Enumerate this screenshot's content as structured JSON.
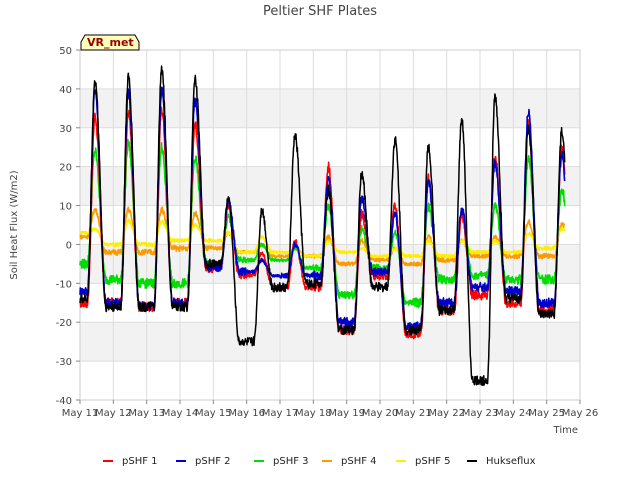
{
  "chart_data": {
    "type": "line",
    "title": "Peltier SHF Plates",
    "xlabel": "Time",
    "ylabel": "Soil Heat Flux (W/m2)",
    "ylim": [
      -40,
      50
    ],
    "yticks": [
      -40,
      -30,
      -20,
      -10,
      0,
      10,
      20,
      30,
      40,
      50
    ],
    "xlim": [
      0,
      15
    ],
    "xtick_labels": [
      "May 11",
      "May 12",
      "May 13",
      "May 14",
      "May 15",
      "May 16",
      "May 17",
      "May 18",
      "May 19",
      "May 20",
      "May 21",
      "May 22",
      "May 23",
      "May 24",
      "May 25",
      "May 26"
    ],
    "x_units": "days since May 11",
    "grid": true,
    "background_bands": true,
    "legend_position": "bottom",
    "annotation": "VR_met",
    "series": [
      {
        "name": "pSHF 1",
        "color": "#ff0000",
        "peaks": [
          33,
          34,
          35,
          31,
          10,
          -2,
          1,
          20,
          8,
          10,
          17,
          8,
          23,
          32,
          25
        ],
        "troughs": [
          -15,
          -15,
          -16,
          -15,
          -6,
          -8,
          -11,
          -11,
          -22,
          -8,
          -23,
          -17,
          -13,
          -15,
          -17,
          -16
        ]
      },
      {
        "name": "pSHF 2",
        "color": "#0000cc",
        "peaks": [
          40,
          39,
          40,
          37,
          11,
          -4,
          0,
          17,
          12,
          8,
          16,
          9,
          21,
          34,
          23
        ],
        "troughs": [
          -12,
          -15,
          -16,
          -15,
          -6,
          -7,
          -8,
          -8,
          -20,
          -7,
          -21,
          -15,
          -11,
          -12,
          -15,
          -13
        ]
      },
      {
        "name": "pSHF 3",
        "color": "#00dd00",
        "peaks": [
          24,
          26,
          25,
          22,
          7,
          0,
          -1,
          10,
          4,
          3,
          10,
          8,
          10,
          22,
          14
        ],
        "troughs": [
          -5,
          -9,
          -10,
          -10,
          -5,
          -4,
          -4,
          -6,
          -13,
          -6,
          -15,
          -9,
          -8,
          -9,
          -9,
          -5
        ]
      },
      {
        "name": "pSHF 4",
        "color": "#ff9900",
        "peaks": [
          9,
          9,
          9,
          8,
          3,
          0,
          -1,
          2,
          1,
          -1,
          2,
          1,
          2,
          6,
          5
        ],
        "troughs": [
          2,
          -2,
          -2,
          -1,
          -1,
          -2,
          -3,
          -3,
          -5,
          -4,
          -5,
          -4,
          -3,
          -3,
          -3,
          2
        ]
      },
      {
        "name": "pSHF 5",
        "color": "#ffee00",
        "peaks": [
          4,
          6,
          6,
          5,
          3,
          2,
          -1,
          1,
          -1,
          -1,
          1,
          1,
          1,
          3,
          4
        ],
        "troughs": [
          3,
          0,
          0,
          1,
          1,
          -2,
          -2,
          -3,
          -2,
          -3,
          -3,
          -3,
          -2,
          -2,
          -1,
          2
        ]
      },
      {
        "name": "Hukseflux",
        "color": "#000000",
        "peaks": [
          42,
          43,
          45,
          43,
          12,
          9,
          28,
          14,
          18,
          27,
          25,
          32,
          38,
          30,
          29
        ],
        "troughs": [
          -14,
          -16,
          -16,
          -16,
          -5,
          -25,
          -11,
          -10,
          -22,
          -11,
          -22,
          -17,
          -35,
          -14,
          -18,
          -16
        ]
      }
    ]
  }
}
